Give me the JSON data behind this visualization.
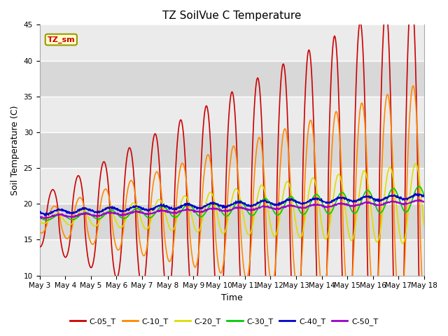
{
  "title": "TZ SoilVue C Temperature",
  "xlabel": "Time",
  "ylabel": "Soil Temperature (C)",
  "ylim": [
    10,
    45
  ],
  "x_tick_labels": [
    "May 3",
    "May 4",
    "May 5",
    "May 6",
    "May 7",
    "May 8",
    "May 9",
    "May 10",
    "May 11",
    "May 12",
    "May 13",
    "May 14",
    "May 15",
    "May 16",
    "May 17",
    "May 18"
  ],
  "legend_label": "TZ_sm",
  "series_labels": [
    "C-05_T",
    "C-10_T",
    "C-20_T",
    "C-30_T",
    "C-40_T",
    "C-50_T"
  ],
  "series_colors": [
    "#cc0000",
    "#ff8800",
    "#dddd00",
    "#00cc00",
    "#0000cc",
    "#9900cc"
  ],
  "background_color": "#ffffff",
  "plot_bg_light": "#ebebeb",
  "plot_bg_dark": "#d8d8d8",
  "grid_color": "#ffffff",
  "title_fontsize": 11,
  "axis_label_fontsize": 9,
  "tick_fontsize": 7.5
}
